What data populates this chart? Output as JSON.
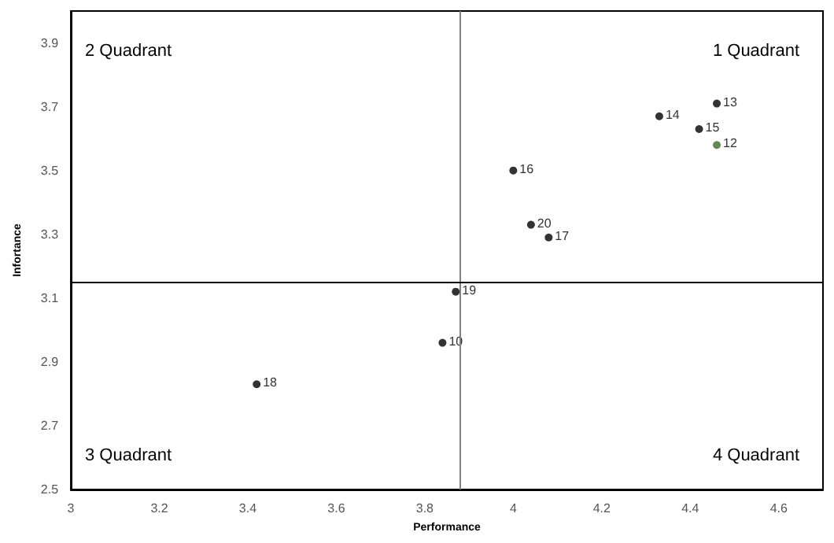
{
  "chart_data": {
    "type": "scatter",
    "xlabel": "Performance",
    "ylabel": "Infortance",
    "x": [
      4.46,
      4.33,
      4.42,
      4.46,
      4.0,
      4.04,
      4.08,
      3.87,
      3.84,
      3.42
    ],
    "values": [
      3.71,
      3.67,
      3.63,
      3.58,
      3.5,
      3.33,
      3.29,
      3.12,
      2.96,
      2.83
    ],
    "colors": [
      "#000000",
      "#000000",
      "#000000",
      "#3a6b26",
      "#000000",
      "#000000",
      "#000000",
      "#000000",
      "#000000",
      "#000000"
    ],
    "xlim": [
      3,
      4.7
    ],
    "xticks": [
      3,
      3.2,
      3.4,
      3.6,
      3.8,
      4,
      4.2,
      4.4,
      4.6
    ],
    "ylim": [
      2.5,
      4.0
    ],
    "yticks": [
      2.5,
      2.7,
      2.9,
      3.1,
      3.3,
      3.5,
      3.7,
      3.9
    ],
    "grid": false,
    "marker": "circle",
    "ref_lines": [
      {
        "axis": "x",
        "value": 3.88,
        "color": "#808080"
      },
      {
        "axis": "y",
        "value": 3.15,
        "color": "#000000"
      }
    ],
    "annotations": [
      "2 Quadrant",
      "1 Quadrant",
      "3 Quadrant",
      "4 Quadrant",
      {
        "text": "13",
        "x": 4.46,
        "y": 3.71
      },
      {
        "text": "14",
        "x": 4.33,
        "y": 3.67
      },
      {
        "text": "15",
        "x": 4.42,
        "y": 3.63
      },
      {
        "text": "12",
        "x": 4.46,
        "y": 3.58
      },
      {
        "text": "16",
        "x": 4.0,
        "y": 3.5
      },
      {
        "text": "20",
        "x": 4.04,
        "y": 3.33
      },
      {
        "text": "17",
        "x": 4.08,
        "y": 3.29
      },
      {
        "text": "19",
        "x": 3.87,
        "y": 3.12
      },
      {
        "text": "10",
        "x": 3.84,
        "y": 2.96
      },
      {
        "text": "18",
        "x": 3.42,
        "y": 2.83
      }
    ]
  }
}
